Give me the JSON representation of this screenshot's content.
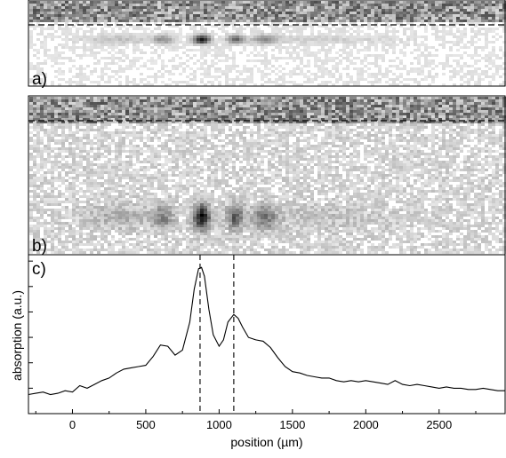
{
  "chart_data": [
    {
      "type": "heatmap",
      "panel_label": "a)",
      "colormap": [
        "#ffffff",
        "#000000"
      ],
      "dashed_line": true
    },
    {
      "type": "heatmap",
      "panel_label": "b)",
      "colormap": [
        "#ffffff",
        "#000000"
      ],
      "dashed_line": true
    },
    {
      "type": "line",
      "panel_label": "c)",
      "xlabel": "position (µm)",
      "ylabel": "absorption (a.u.)",
      "xlim": [
        -300,
        2950
      ],
      "ylim": [
        -0.2,
        1.05
      ],
      "xticks": [
        0,
        500,
        1000,
        1500,
        2000,
        2500
      ],
      "xtick_labels": [
        "0",
        "500",
        "1000",
        "1500",
        "2000",
        "2500"
      ],
      "yticks": [
        0,
        0.2,
        0.4,
        0.6,
        0.8,
        1.0
      ],
      "vertical_dashed_lines": [
        870,
        1100
      ],
      "series": [
        {
          "color": "#000000",
          "x": [
            -300,
            -250,
            -200,
            -150,
            -100,
            -50,
            0,
            50,
            100,
            150,
            200,
            250,
            300,
            350,
            400,
            450,
            500,
            550,
            600,
            650,
            700,
            750,
            800,
            830,
            860,
            880,
            900,
            930,
            960,
            1000,
            1030,
            1060,
            1100,
            1130,
            1160,
            1200,
            1250,
            1300,
            1350,
            1400,
            1450,
            1500,
            1550,
            1600,
            1650,
            1700,
            1750,
            1800,
            1850,
            1900,
            1950,
            2000,
            2050,
            2100,
            2150,
            2200,
            2250,
            2300,
            2350,
            2400,
            2450,
            2500,
            2550,
            2600,
            2650,
            2700,
            2750,
            2800,
            2850,
            2900,
            2950
          ],
          "values": [
            -0.05,
            -0.04,
            -0.03,
            -0.05,
            -0.04,
            -0.02,
            -0.03,
            0.02,
            0.0,
            0.03,
            0.06,
            0.08,
            0.12,
            0.15,
            0.16,
            0.17,
            0.18,
            0.25,
            0.34,
            0.33,
            0.26,
            0.3,
            0.52,
            0.78,
            0.94,
            0.95,
            0.88,
            0.62,
            0.42,
            0.33,
            0.38,
            0.52,
            0.58,
            0.55,
            0.48,
            0.4,
            0.38,
            0.37,
            0.32,
            0.24,
            0.17,
            0.13,
            0.12,
            0.1,
            0.09,
            0.08,
            0.08,
            0.06,
            0.05,
            0.06,
            0.05,
            0.06,
            0.05,
            0.04,
            0.03,
            0.06,
            0.03,
            0.02,
            0.03,
            0.02,
            0.01,
            0.0,
            0.01,
            0.0,
            0.0,
            -0.01,
            -0.01,
            0.0,
            -0.01,
            -0.02,
            -0.02
          ]
        }
      ]
    }
  ]
}
